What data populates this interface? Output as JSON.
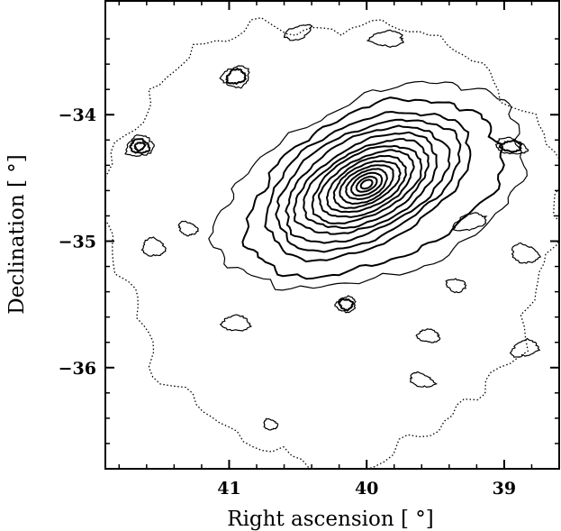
{
  "chart_data": {
    "type": "contour",
    "title": "",
    "xlabel": "Right ascension [ °]",
    "ylabel": "Declination [ °]",
    "x_axis_reversed": true,
    "xlim": [
      41.9,
      38.6
    ],
    "ylim": [
      -36.8,
      -33.1
    ],
    "xticks": [
      {
        "value": 41,
        "label": "41"
      },
      {
        "value": 40,
        "label": "40"
      },
      {
        "value": 39,
        "label": "39"
      }
    ],
    "yticks": [
      {
        "value": -34,
        "label": "−34"
      },
      {
        "value": -35,
        "label": "−35"
      },
      {
        "value": -36,
        "label": "−36"
      }
    ],
    "grid": false,
    "peak": {
      "ra": 40.0,
      "dec": -34.55
    },
    "level_styles": [
      "dotted",
      "thin",
      "thick"
    ],
    "main_contours": [
      {
        "rx": 0.8,
        "ry": 0.48,
        "angle": -27,
        "style": "thick"
      },
      {
        "rx": 0.72,
        "ry": 0.42,
        "angle": -27,
        "style": "thick"
      },
      {
        "rx": 0.64,
        "ry": 0.37,
        "angle": -27,
        "style": "thick"
      },
      {
        "rx": 0.56,
        "ry": 0.32,
        "angle": -27,
        "style": "thick"
      },
      {
        "rx": 0.49,
        "ry": 0.28,
        "angle": -27,
        "style": "thick"
      },
      {
        "rx": 0.43,
        "ry": 0.245,
        "angle": -27,
        "style": "thick"
      },
      {
        "rx": 0.37,
        "ry": 0.21,
        "angle": -27,
        "style": "thick"
      },
      {
        "rx": 0.31,
        "ry": 0.18,
        "angle": -27,
        "style": "thick"
      },
      {
        "rx": 0.26,
        "ry": 0.15,
        "angle": -27,
        "style": "thick"
      },
      {
        "rx": 0.21,
        "ry": 0.125,
        "angle": -27,
        "style": "thick"
      },
      {
        "rx": 0.16,
        "ry": 0.1,
        "angle": -27,
        "style": "thick"
      },
      {
        "rx": 0.12,
        "ry": 0.075,
        "angle": -27,
        "style": "thick"
      },
      {
        "rx": 0.08,
        "ry": 0.05,
        "angle": -27,
        "style": "thick"
      },
      {
        "rx": 0.045,
        "ry": 0.03,
        "angle": -27,
        "style": "thick"
      }
    ],
    "outer_contours": [
      {
        "rx": 1.18,
        "ry": 0.7,
        "angle": -22,
        "style": "thin"
      },
      {
        "rx": 0.98,
        "ry": 0.6,
        "angle": -24,
        "style": "thick"
      }
    ],
    "secondary_sources": [
      {
        "ra": 41.65,
        "dec": -34.25,
        "rx": 0.1,
        "ry": 0.08,
        "levels": 3
      },
      {
        "ra": 40.15,
        "dec": -35.5,
        "rx": 0.07,
        "ry": 0.06,
        "levels": 2
      },
      {
        "ra": 38.95,
        "dec": -34.25,
        "rx": 0.11,
        "ry": 0.06,
        "levels": 2
      },
      {
        "ra": 40.95,
        "dec": -33.7,
        "rx": 0.1,
        "ry": 0.08,
        "levels": 2
      },
      {
        "ra": 40.95,
        "dec": -35.65,
        "rx": 0.1,
        "ry": 0.06,
        "levels": 1
      },
      {
        "ra": 39.55,
        "dec": -35.75,
        "rx": 0.08,
        "ry": 0.05,
        "levels": 1
      },
      {
        "ra": 41.55,
        "dec": -35.05,
        "rx": 0.08,
        "ry": 0.07,
        "levels": 1
      },
      {
        "ra": 39.25,
        "dec": -34.85,
        "rx": 0.12,
        "ry": 0.06,
        "levels": 1
      },
      {
        "ra": 38.85,
        "dec": -35.1,
        "rx": 0.1,
        "ry": 0.07,
        "levels": 1
      },
      {
        "ra": 39.85,
        "dec": -33.4,
        "rx": 0.12,
        "ry": 0.06,
        "levels": 1
      },
      {
        "ra": 40.5,
        "dec": -33.35,
        "rx": 0.1,
        "ry": 0.05,
        "levels": 1
      },
      {
        "ra": 39.35,
        "dec": -35.35,
        "rx": 0.07,
        "ry": 0.05,
        "levels": 1
      },
      {
        "ra": 41.3,
        "dec": -34.9,
        "rx": 0.07,
        "ry": 0.05,
        "levels": 1
      },
      {
        "ra": 39.6,
        "dec": -36.1,
        "rx": 0.09,
        "ry": 0.05,
        "levels": 1
      },
      {
        "ra": 40.7,
        "dec": -36.45,
        "rx": 0.05,
        "ry": 0.04,
        "levels": 1
      },
      {
        "ra": 38.85,
        "dec": -35.85,
        "rx": 0.1,
        "ry": 0.06,
        "levels": 1
      }
    ],
    "noise_seed": 7
  }
}
